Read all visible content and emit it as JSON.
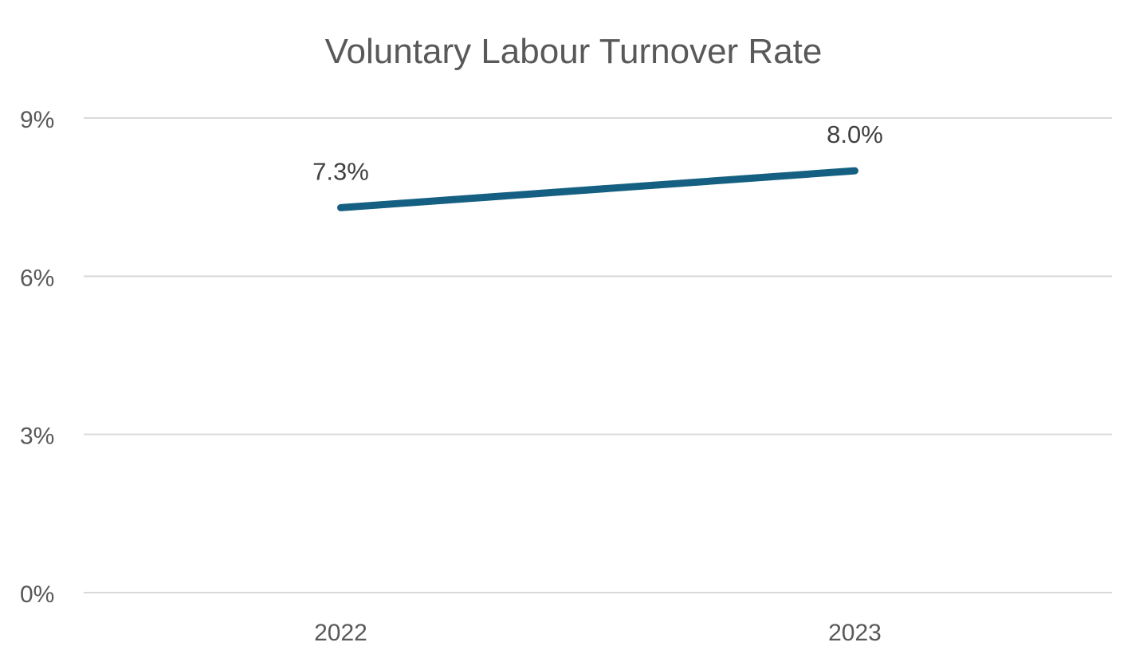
{
  "chart_data": {
    "type": "line",
    "title": "Voluntary Labour Turnover Rate",
    "categories": [
      "2022",
      "2023"
    ],
    "series": [
      {
        "name": "Voluntary Labour Turnover Rate",
        "values": [
          7.3,
          8.0
        ],
        "data_labels": [
          "7.3%",
          "8.0%"
        ],
        "color": "#156082"
      }
    ],
    "xlabel": "",
    "ylabel": "",
    "ylim": [
      0,
      9
    ],
    "y_tick_values": [
      0,
      3,
      6,
      9
    ],
    "y_tick_labels": [
      "0%",
      "3%",
      "6%",
      "9%"
    ],
    "grid": "horizontal-only",
    "legend": "none",
    "markers": "none",
    "colors": {
      "line": "#156082",
      "gridline": "#D9D9D9",
      "title_text": "#595959",
      "axis_text": "#595959",
      "data_label_text": "#404040",
      "background": "#FFFFFF"
    }
  }
}
